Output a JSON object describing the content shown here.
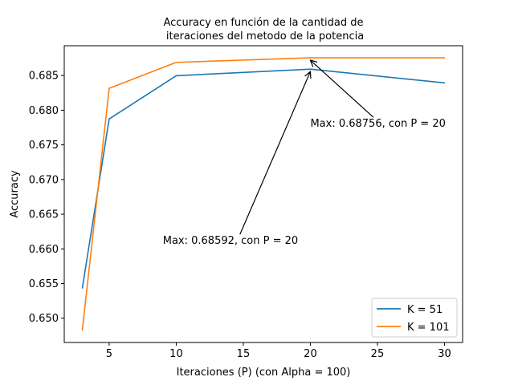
{
  "chart_data": {
    "type": "line",
    "title": [
      "Accuracy en función de la cantidad de",
      " iteraciones del metodo de la potencia"
    ],
    "xlabel": "Iteraciones (P) (con Alpha = 100)",
    "ylabel": "Accuracy",
    "xlim": [
      1.65,
      31.35
    ],
    "ylim": [
      0.6465,
      0.6893
    ],
    "xticks": [
      5,
      10,
      15,
      20,
      25,
      30
    ],
    "xtick_labels": [
      "5",
      "10",
      "15",
      "20",
      "25",
      "30"
    ],
    "yticks": [
      0.65,
      0.655,
      0.66,
      0.665,
      0.67,
      0.675,
      0.68,
      0.685
    ],
    "ytick_labels": [
      "0.650",
      "0.655",
      "0.660",
      "0.665",
      "0.670",
      "0.675",
      "0.680",
      "0.685"
    ],
    "grid": false,
    "legend_position": "lower-right",
    "x": [
      3,
      5,
      10,
      20,
      30
    ],
    "series": [
      {
        "name": "K = 51",
        "color": "#1f77b4",
        "values": [
          0.65437,
          0.67874,
          0.68497,
          0.68592,
          0.68394
        ]
      },
      {
        "name": "K = 101",
        "color": "#ff7f0e",
        "values": [
          0.64831,
          0.68316,
          0.6869,
          0.68756,
          0.68756
        ]
      }
    ],
    "annotations": [
      {
        "text": "Max: 0.68592, con P = 20",
        "xy": [
          20,
          0.68592
        ],
        "text_xy": [
          9,
          0.6607
        ]
      },
      {
        "text": "Max: 0.68756, con P = 20",
        "xy": [
          20,
          0.68756
        ],
        "text_xy": [
          20,
          0.6776
        ]
      }
    ]
  }
}
